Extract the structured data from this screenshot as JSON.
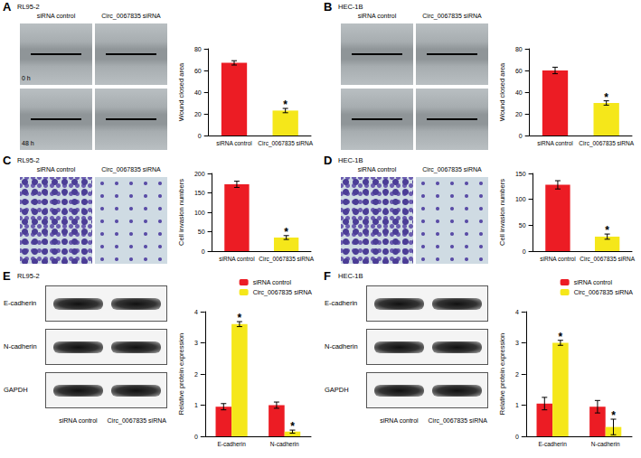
{
  "panels": [
    {
      "label": "A",
      "cell_line": "RL95-2",
      "kind": "wound",
      "columns": [
        "siRNA control",
        "Circ_0067835 siRNA"
      ],
      "rows": [
        "0 h",
        "48 h"
      ]
    },
    {
      "label": "B",
      "cell_line": "HEC-1B",
      "kind": "wound",
      "columns": [
        "siRNA control",
        "Circ_0067835 siRNA"
      ]
    },
    {
      "label": "C",
      "cell_line": "RL95-2",
      "kind": "transwell",
      "columns": [
        "siRNA control",
        "Circ_0067835 siRNA"
      ]
    },
    {
      "label": "D",
      "cell_line": "HEC-1B",
      "kind": "transwell",
      "columns": [
        "siRNA control",
        "Circ_0067835 siRNA"
      ]
    },
    {
      "label": "E",
      "cell_line": "RL95-2",
      "kind": "blot",
      "rows": [
        "E-cadherin",
        "N-cadherin",
        "GAPDH"
      ],
      "columns": [
        "siRNA control",
        "Circ_0067835 siRNA"
      ]
    },
    {
      "label": "F",
      "cell_line": "HEC-1B",
      "kind": "blot",
      "rows": [
        "E-cadherin",
        "N-cadherin",
        "GAPDH"
      ],
      "columns": [
        "siRNA control",
        "Circ_0067835 siRNA"
      ]
    }
  ],
  "chart_data": [
    {
      "type": "bar",
      "ylabel": "Wound closed area",
      "categories": [
        "siRNA control",
        "Circ_0067835 siRNA"
      ],
      "values": [
        67,
        23
      ],
      "errors": [
        2,
        2
      ],
      "colors": [
        "#ec1c24",
        "#f5e71a"
      ],
      "ylim": [
        0,
        80
      ],
      "yticks": [
        0,
        20,
        40,
        60,
        80
      ],
      "grid": false,
      "annotations": [
        {
          "text": "*",
          "index": 1
        }
      ]
    },
    {
      "type": "bar",
      "ylabel": "Wound closed area",
      "categories": [
        "siRNA control",
        "Circ_0067835 siRNA"
      ],
      "values": [
        60,
        30
      ],
      "errors": [
        3,
        2
      ],
      "colors": [
        "#ec1c24",
        "#f5e71a"
      ],
      "ylim": [
        0,
        80
      ],
      "yticks": [
        0,
        20,
        40,
        60,
        80
      ],
      "grid": false,
      "annotations": [
        {
          "text": "*",
          "index": 1
        }
      ]
    },
    {
      "type": "bar",
      "ylabel": "Cell invasion numbers",
      "categories": [
        "siRNA control",
        "Circ_0067835 siRNA"
      ],
      "values": [
        172,
        35
      ],
      "errors": [
        8,
        5
      ],
      "colors": [
        "#ec1c24",
        "#f5e71a"
      ],
      "ylim": [
        0,
        200
      ],
      "yticks": [
        0,
        50,
        100,
        150,
        200
      ],
      "grid": false,
      "annotations": [
        {
          "text": "*",
          "index": 1
        }
      ]
    },
    {
      "type": "bar",
      "ylabel": "Cell invasion numbers",
      "categories": [
        "siRNA control",
        "Circ_0067835 siRNA"
      ],
      "values": [
        128,
        28
      ],
      "errors": [
        8,
        5
      ],
      "colors": [
        "#ec1c24",
        "#f5e71a"
      ],
      "ylim": [
        0,
        150
      ],
      "yticks": [
        0,
        50,
        100,
        150
      ],
      "grid": false,
      "annotations": [
        {
          "text": "*",
          "index": 1
        }
      ]
    },
    {
      "type": "bar",
      "ylabel": "Relative protein expression",
      "categories": [
        "E-cadherin",
        "N-cadherin"
      ],
      "series": [
        {
          "name": "siRNA control",
          "color": "#ec1c24",
          "values": [
            0.95,
            1.0
          ],
          "errors": [
            0.1,
            0.1
          ]
        },
        {
          "name": "Circ_0067835 siRNA",
          "color": "#f5e71a",
          "values": [
            3.6,
            0.15
          ],
          "errors": [
            0.08,
            0.05
          ]
        }
      ],
      "ylim": [
        0,
        4
      ],
      "yticks": [
        0,
        1,
        2,
        3,
        4
      ],
      "grid": false,
      "legend": "top-right",
      "annotations": [
        {
          "text": "*",
          "series": 1,
          "index": 0
        },
        {
          "text": "*",
          "series": 1,
          "index": 1
        }
      ]
    },
    {
      "type": "bar",
      "ylabel": "Relative protein expression",
      "categories": [
        "E-cadherin",
        "N-cadherin"
      ],
      "series": [
        {
          "name": "siRNA control",
          "color": "#ec1c24",
          "values": [
            1.05,
            0.95
          ],
          "errors": [
            0.2,
            0.2
          ]
        },
        {
          "name": "Circ_0067835 siRNA",
          "color": "#f5e71a",
          "values": [
            3.0,
            0.3
          ],
          "errors": [
            0.08,
            0.25
          ]
        }
      ],
      "ylim": [
        0,
        4
      ],
      "yticks": [
        0,
        1,
        2,
        3,
        4
      ],
      "grid": false,
      "legend": "top-right",
      "annotations": [
        {
          "text": "*",
          "series": 1,
          "index": 0
        },
        {
          "text": "*",
          "series": 1,
          "index": 1
        }
      ]
    }
  ]
}
